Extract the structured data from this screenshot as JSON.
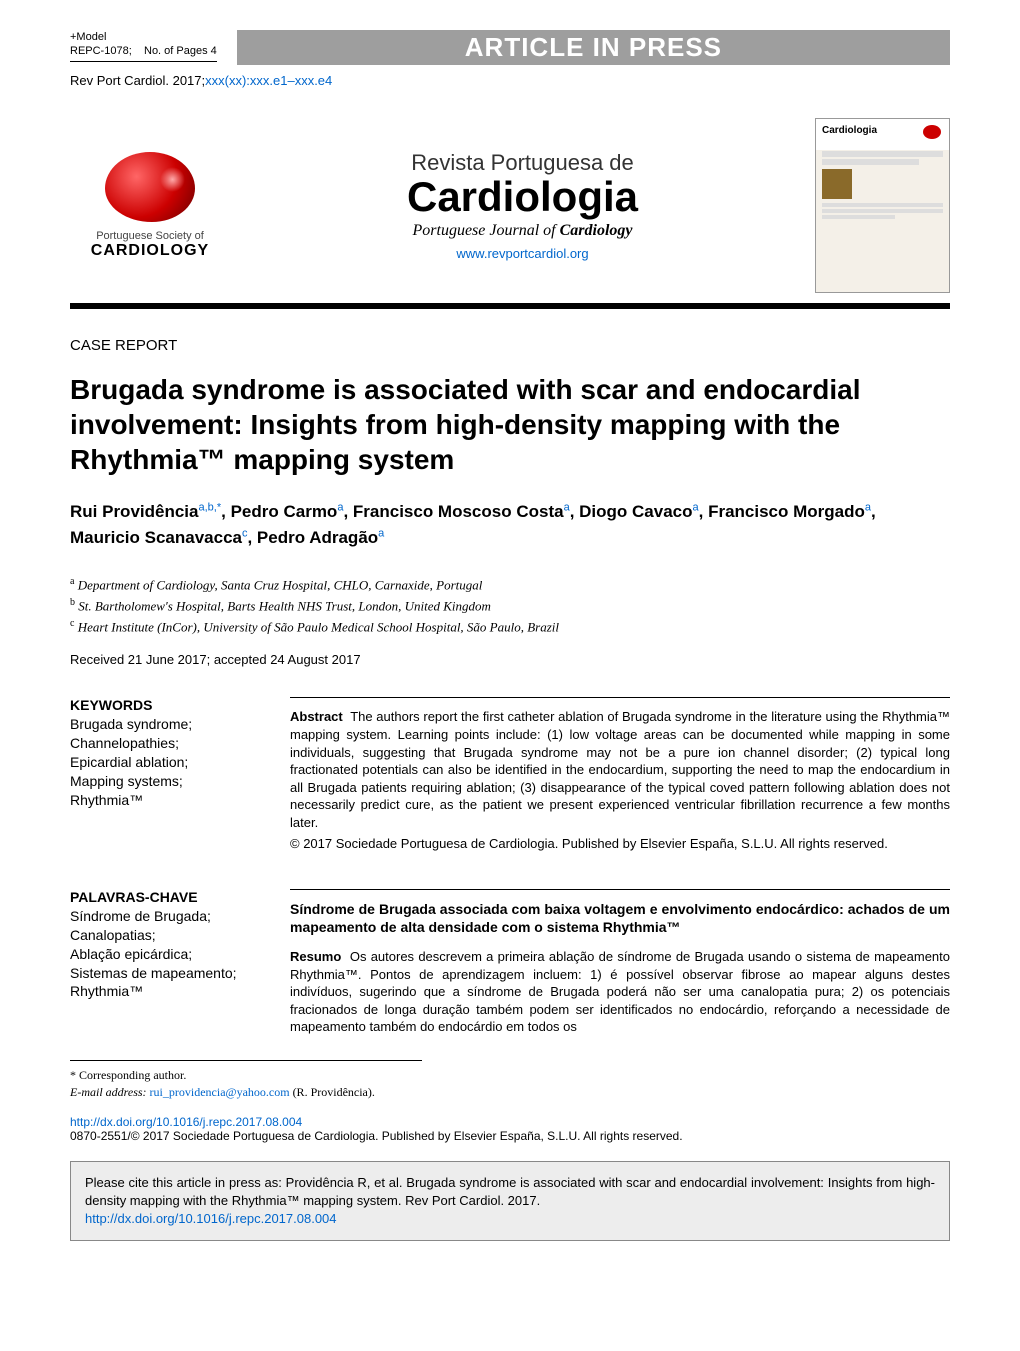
{
  "header": {
    "model_label": "+Model",
    "ref_code": "REPC-1078;",
    "pages_label": "No. of Pages 4",
    "press_banner": "ARTICLE IN PRESS",
    "citation_prefix": "Rev Port Cardiol. 2017;",
    "citation_suffix": "xxx(xx):xxx.e1–xxx.e4"
  },
  "journal": {
    "society_line1": "Portuguese Society of",
    "society_line2": "CARDIOLOGY",
    "line1": "Revista Portuguesa de",
    "line2": "Cardiologia",
    "line3_plain": "Portuguese Journal of ",
    "line3_bold": "Cardiology",
    "website": "www.revportcardiol.org",
    "cover_title": "Cardiologia"
  },
  "article": {
    "section": "CASE REPORT",
    "title": "Brugada syndrome is associated with scar and endocardial involvement: Insights from high-density mapping with the Rhythmia™ mapping system",
    "authors_html": "Rui Providência<sup>a,b,*</sup>, Pedro Carmo<sup>a</sup>, Francisco Moscoso Costa<sup>a</sup>, Diogo Cavaco<sup>a</sup>, Francisco Morgado<sup>a</sup>, Mauricio Scanavacca<sup>c</sup>, Pedro Adragão<sup>a</sup>",
    "affiliations": [
      {
        "label": "a",
        "text": "Department of Cardiology, Santa Cruz Hospital, CHLO, Carnaxide, Portugal"
      },
      {
        "label": "b",
        "text": "St. Bartholomew's Hospital, Barts Health NHS Trust, London, United Kingdom"
      },
      {
        "label": "c",
        "text": "Heart Institute (InCor), University of São Paulo Medical School Hospital, São Paulo, Brazil"
      }
    ],
    "received": "Received 21 June 2017; accepted 24 August 2017"
  },
  "keywords": {
    "heading": "KEYWORDS",
    "items": "Brugada syndrome;\nChannelopathies;\nEpicardial ablation;\nMapping systems;\nRhythmia™"
  },
  "abstract": {
    "label": "Abstract",
    "body": "The authors report the first catheter ablation of Brugada syndrome in the literature using the Rhythmia™ mapping system. Learning points include: (1) low voltage areas can be documented while mapping in some individuals, suggesting that Brugada syndrome may not be a pure ion channel disorder; (2) typical long fractionated potentials can also be identified in the endocardium, supporting the need to map the endocardium in all Brugada patients requiring ablation; (3) disappearance of the typical coved pattern following ablation does not necessarily predict cure, as the patient we present experienced ventricular fibrillation recurrence a few months later.",
    "copyright": "© 2017 Sociedade Portuguesa de Cardiologia. Published by Elsevier España, S.L.U. All rights reserved."
  },
  "keywords_pt": {
    "heading": "PALAVRAS-CHAVE",
    "items": "Síndrome de Brugada;\nCanalopatias;\nAblação epicárdica;\nSistemas de mapeamento;\nRhythmia™"
  },
  "abstract_pt": {
    "title": "Síndrome de Brugada associada com baixa voltagem e envolvimento endocárdico: achados de um mapeamento de alta densidade com o sistema Rhythmia™",
    "label": "Resumo",
    "body": "Os autores descrevem a primeira ablação de síndrome de Brugada usando o sistema de mapeamento Rhythmia™. Pontos de aprendizagem incluem: 1) é possível observar fibrose ao mapear alguns destes indivíduos, sugerindo que a síndrome de Brugada poderá não ser uma canalopatia pura; 2) os potenciais fracionados de longa duração também podem ser identificados no endocárdio, reforçando a necessidade de mapeamento também do endocárdio em todos os"
  },
  "footer": {
    "corresponding_label": "* Corresponding author.",
    "email_label": "E-mail address:",
    "email": "rui_providencia@yahoo.com",
    "email_name": "(R. Providência).",
    "doi": "http://dx.doi.org/10.1016/j.repc.2017.08.004",
    "issn_line": "0870-2551/© 2017 Sociedade Portuguesa de Cardiologia. Published by Elsevier España, S.L.U. All rights reserved.",
    "cite_text": "Please cite this article in press as: Providência R, et al. Brugada syndrome is associated with scar and endocardial involvement: Insights from high-density mapping with the Rhythmia™ mapping system. Rev Port Cardiol. 2017.",
    "cite_link": "http://dx.doi.org/10.1016/j.repc.2017.08.004"
  },
  "colors": {
    "link": "#0066cc",
    "banner_bg": "#9e9e9e",
    "banner_fg": "#ffffff",
    "box_bg": "#ededed",
    "heart_red": "#cc0000"
  }
}
